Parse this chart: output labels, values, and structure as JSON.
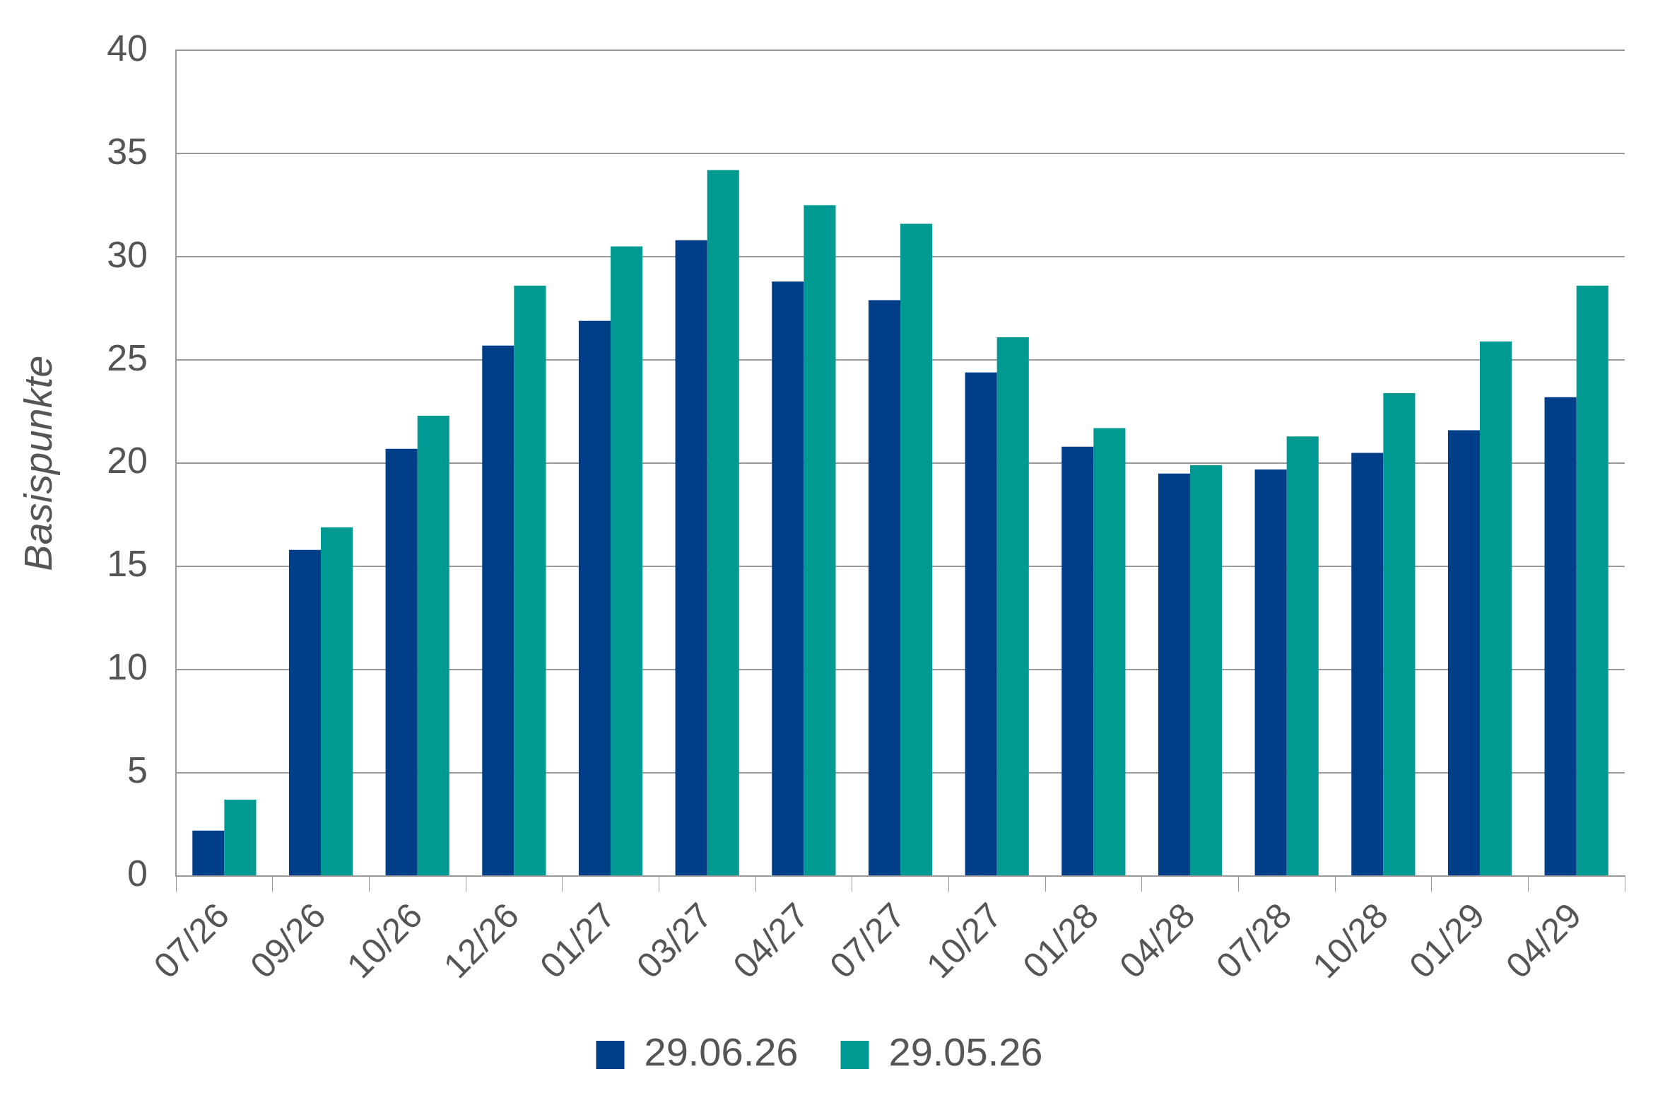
{
  "chart_data": {
    "type": "bar",
    "ylabel": "Basispunkte",
    "categories": [
      "07/26",
      "09/26",
      "10/26",
      "12/26",
      "01/27",
      "03/27",
      "04/27",
      "07/27",
      "10/27",
      "01/28",
      "04/28",
      "07/28",
      "10/28",
      "01/29",
      "04/29"
    ],
    "series": [
      {
        "name": "29.06.26",
        "color": "#003f87",
        "values": [
          2.2,
          15.8,
          20.7,
          25.7,
          26.9,
          30.8,
          28.8,
          27.9,
          24.4,
          20.8,
          19.5,
          19.7,
          20.5,
          21.6,
          23.2
        ]
      },
      {
        "name": "29.05.26",
        "color": "#009a93",
        "values": [
          3.7,
          16.9,
          22.3,
          28.6,
          30.5,
          34.2,
          32.5,
          31.6,
          26.1,
          21.7,
          19.9,
          21.3,
          23.4,
          25.9,
          28.6
        ]
      }
    ],
    "ylim": [
      0,
      40
    ],
    "yticks": [
      0,
      5,
      10,
      15,
      20,
      25,
      30,
      35,
      40
    ],
    "grid": "y",
    "legend": "bottom"
  }
}
